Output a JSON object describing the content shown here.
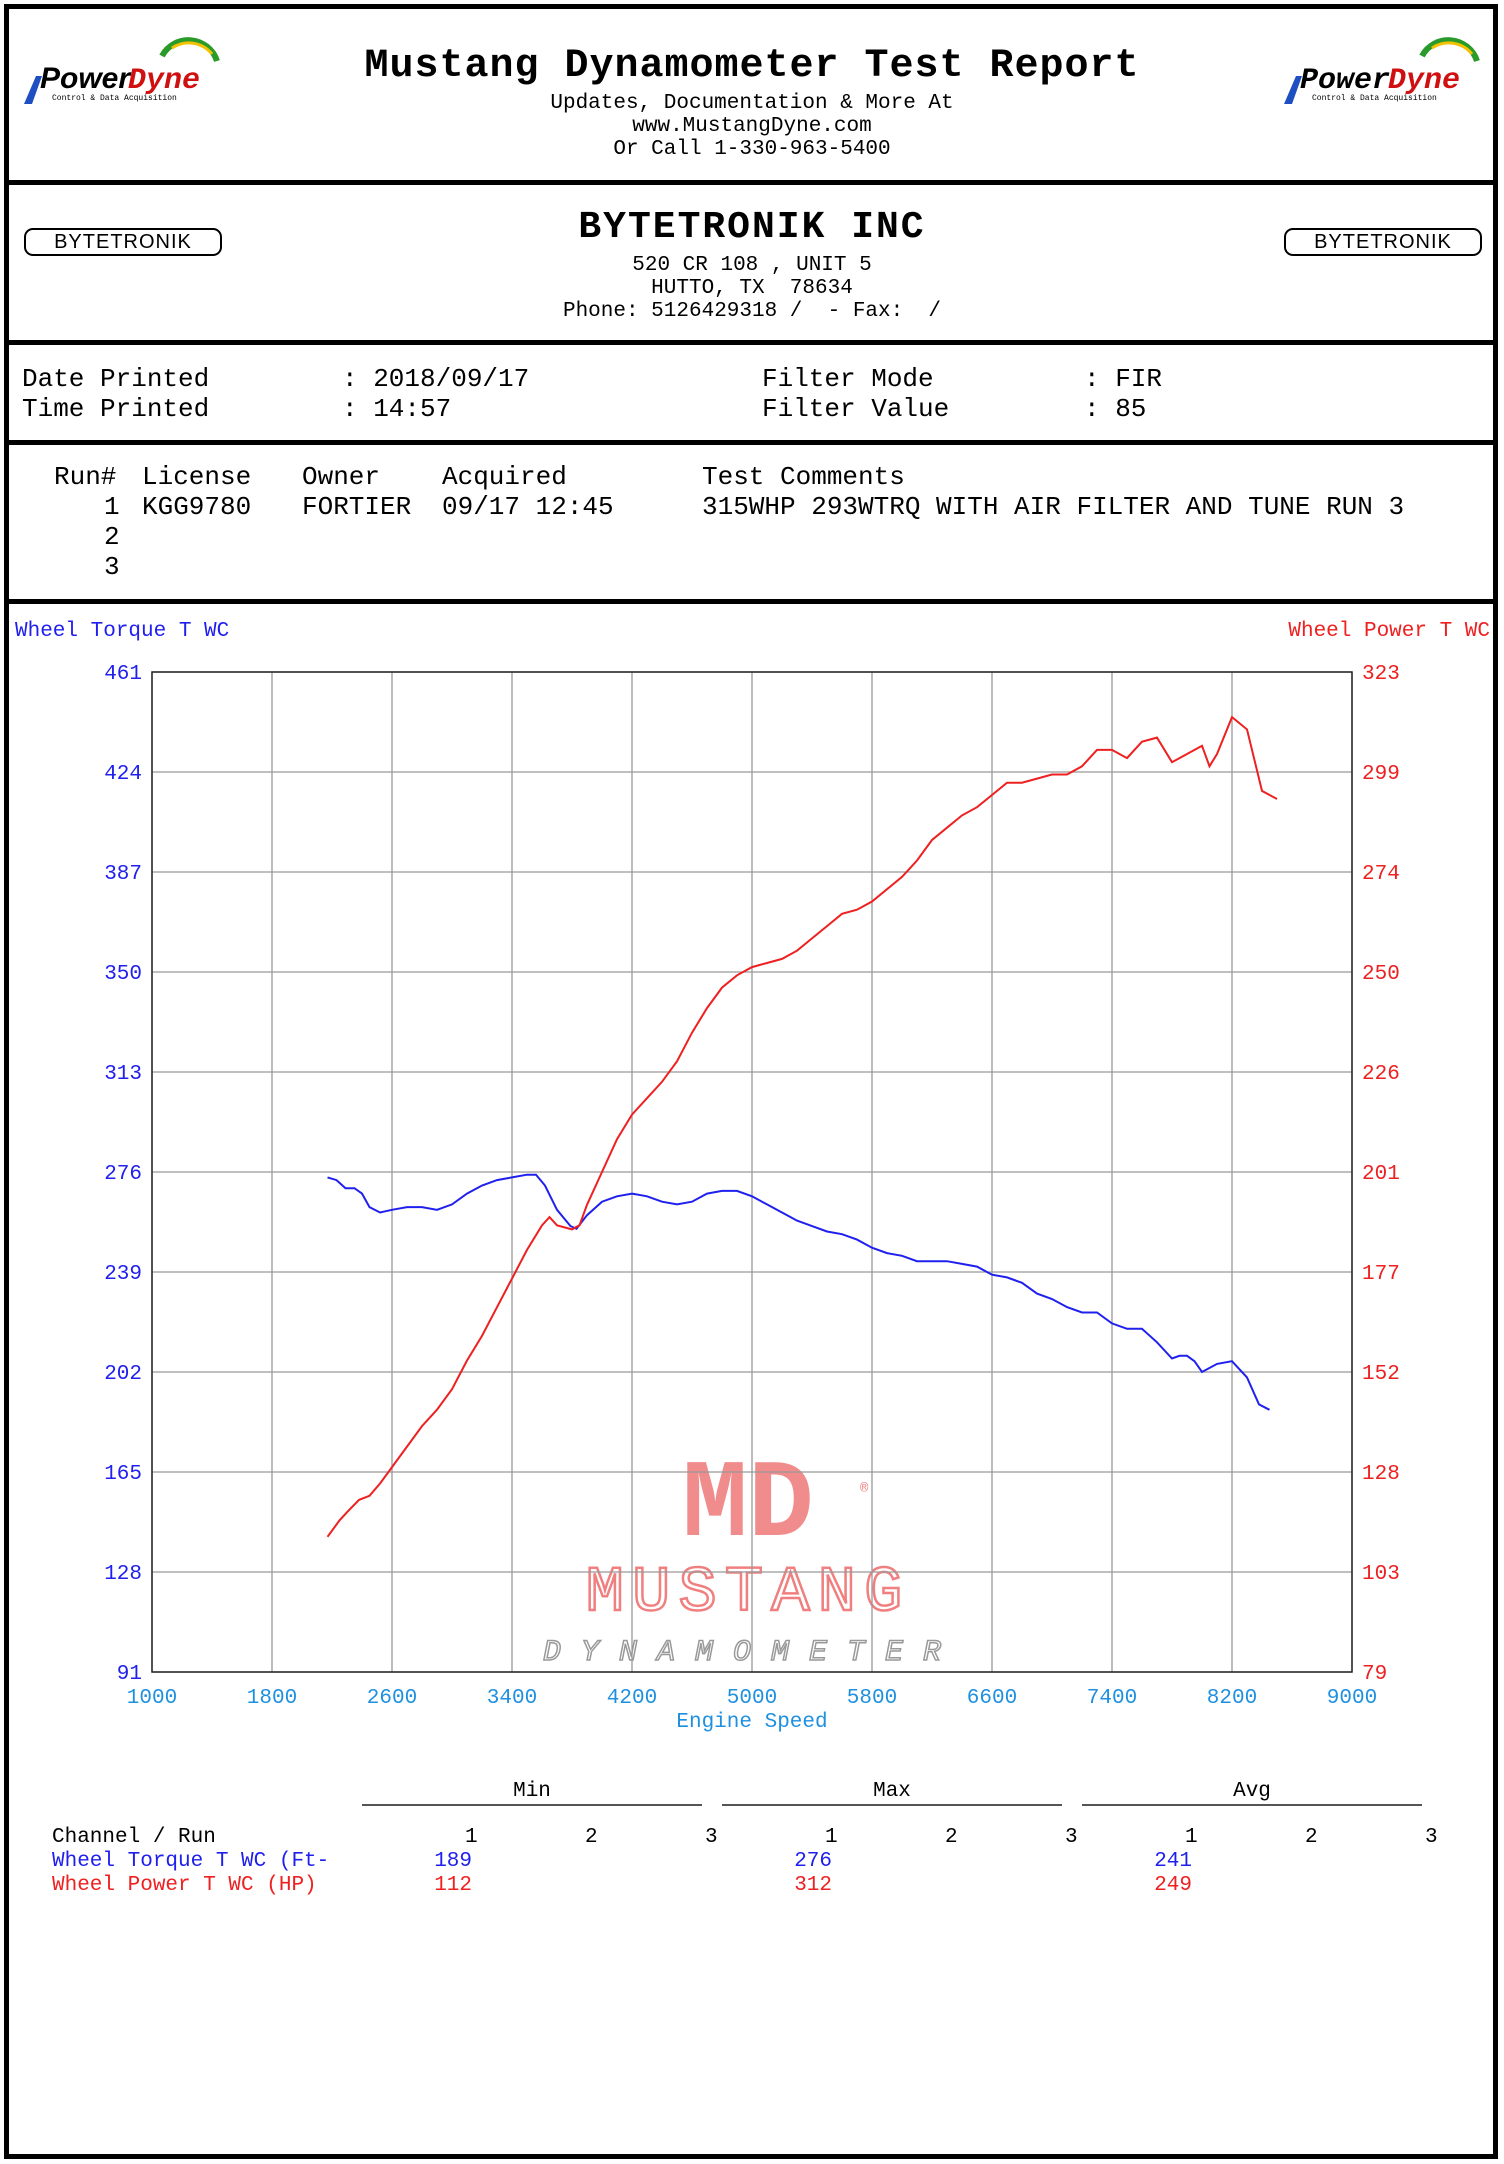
{
  "header": {
    "brand": "PowerDyne",
    "brand_sub": "Control & Data Acquisition",
    "title": "Mustang Dynamometer Test Report",
    "line1": "Updates, Documentation & More At",
    "line2": "www.MustangDyne.com",
    "line3": "Or Call 1-330-963-5400"
  },
  "shop": {
    "logo_text": "BYTETRONIK",
    "name": "BYTETRONIK INC",
    "address1": "520 CR 108 , UNIT 5",
    "address2": "HUTTO, TX  78634",
    "phone": "Phone: 5126429318 /  - Fax:  /"
  },
  "print_info": {
    "date_label": "Date Printed",
    "date_value": ": 2018/09/17",
    "time_label": "Time Printed",
    "time_value": ": 14:57",
    "filter_mode_label": "Filter Mode",
    "filter_mode_value": ": FIR",
    "filter_value_label": "Filter Value",
    "filter_value_value": ": 85"
  },
  "runs": {
    "headers": [
      "Run#",
      "License",
      "Owner",
      "Acquired",
      "Test Comments"
    ],
    "rows": [
      {
        "run": "1",
        "license": "KGG9780",
        "owner": "FORTIER",
        "acquired": "09/17 12:45",
        "comments": "315WHP 293WTRQ WITH AIR FILTER AND TUNE RUN 3"
      },
      {
        "run": "2",
        "license": "",
        "owner": "",
        "acquired": "",
        "comments": ""
      },
      {
        "run": "3",
        "license": "",
        "owner": "",
        "acquired": "",
        "comments": ""
      }
    ]
  },
  "watermark": {
    "mark": "MD",
    "word1": "MUSTANG",
    "word2": "DYNAMOMETER",
    "registered": "®"
  },
  "chart_data": {
    "type": "line",
    "xlabel": "Engine Speed",
    "ylabel_left": "Wheel Torque T WC",
    "ylabel_right": "Wheel Power T WC",
    "xlim": [
      1000,
      9000
    ],
    "ylim_left": [
      91,
      461
    ],
    "ylim_right": [
      79,
      323
    ],
    "x_ticks": [
      "1000",
      "1800",
      "2600",
      "3400",
      "4200",
      "5000",
      "5800",
      "6600",
      "7400",
      "8200",
      "9000"
    ],
    "y_ticks_left": [
      "461",
      "424",
      "387",
      "350",
      "313",
      "276",
      "239",
      "202",
      "165",
      "128",
      "91"
    ],
    "y_ticks_right": [
      "323",
      "299",
      "274",
      "250",
      "226",
      "201",
      "177",
      "152",
      "128",
      "103",
      "79"
    ],
    "grid": true,
    "colors": {
      "torque": "#2020ee",
      "power": "#ee2020",
      "axis_text": "#1e90e0"
    },
    "series": [
      {
        "name": "Wheel Torque T WC",
        "axis": "left",
        "points": [
          [
            2170,
            274
          ],
          [
            2230,
            273
          ],
          [
            2290,
            270
          ],
          [
            2350,
            270
          ],
          [
            2400,
            268
          ],
          [
            2450,
            263
          ],
          [
            2520,
            261
          ],
          [
            2600,
            262
          ],
          [
            2700,
            263
          ],
          [
            2800,
            263
          ],
          [
            2900,
            262
          ],
          [
            3000,
            264
          ],
          [
            3100,
            268
          ],
          [
            3200,
            271
          ],
          [
            3300,
            273
          ],
          [
            3400,
            274
          ],
          [
            3500,
            275
          ],
          [
            3560,
            275
          ],
          [
            3620,
            271
          ],
          [
            3700,
            262
          ],
          [
            3790,
            256
          ],
          [
            3830,
            255
          ],
          [
            3900,
            260
          ],
          [
            4000,
            265
          ],
          [
            4100,
            267
          ],
          [
            4200,
            268
          ],
          [
            4300,
            267
          ],
          [
            4400,
            265
          ],
          [
            4500,
            264
          ],
          [
            4600,
            265
          ],
          [
            4700,
            268
          ],
          [
            4800,
            269
          ],
          [
            4900,
            269
          ],
          [
            5000,
            267
          ],
          [
            5100,
            264
          ],
          [
            5200,
            261
          ],
          [
            5300,
            258
          ],
          [
            5400,
            256
          ],
          [
            5500,
            254
          ],
          [
            5600,
            253
          ],
          [
            5700,
            251
          ],
          [
            5800,
            248
          ],
          [
            5900,
            246
          ],
          [
            6000,
            245
          ],
          [
            6100,
            243
          ],
          [
            6200,
            243
          ],
          [
            6300,
            243
          ],
          [
            6400,
            242
          ],
          [
            6500,
            241
          ],
          [
            6600,
            238
          ],
          [
            6700,
            237
          ],
          [
            6800,
            235
          ],
          [
            6900,
            231
          ],
          [
            7000,
            229
          ],
          [
            7100,
            226
          ],
          [
            7200,
            224
          ],
          [
            7300,
            224
          ],
          [
            7400,
            220
          ],
          [
            7500,
            218
          ],
          [
            7600,
            218
          ],
          [
            7700,
            213
          ],
          [
            7800,
            207
          ],
          [
            7850,
            208
          ],
          [
            7900,
            208
          ],
          [
            7950,
            206
          ],
          [
            8000,
            202
          ],
          [
            8100,
            205
          ],
          [
            8200,
            206
          ],
          [
            8300,
            200
          ],
          [
            8380,
            190
          ],
          [
            8450,
            188
          ]
        ]
      },
      {
        "name": "Wheel Power T WC",
        "axis": "right",
        "points": [
          [
            2170,
            112
          ],
          [
            2250,
            116
          ],
          [
            2300,
            118
          ],
          [
            2380,
            121
          ],
          [
            2450,
            122
          ],
          [
            2520,
            125
          ],
          [
            2600,
            129
          ],
          [
            2700,
            134
          ],
          [
            2800,
            139
          ],
          [
            2900,
            143
          ],
          [
            3000,
            148
          ],
          [
            3100,
            155
          ],
          [
            3200,
            161
          ],
          [
            3300,
            168
          ],
          [
            3400,
            175
          ],
          [
            3500,
            182
          ],
          [
            3600,
            188
          ],
          [
            3650,
            190
          ],
          [
            3700,
            188
          ],
          [
            3800,
            187
          ],
          [
            3850,
            188
          ],
          [
            3900,
            193
          ],
          [
            4000,
            201
          ],
          [
            4100,
            209
          ],
          [
            4200,
            215
          ],
          [
            4300,
            219
          ],
          [
            4400,
            223
          ],
          [
            4500,
            228
          ],
          [
            4600,
            235
          ],
          [
            4700,
            241
          ],
          [
            4800,
            246
          ],
          [
            4900,
            249
          ],
          [
            5000,
            251
          ],
          [
            5100,
            252
          ],
          [
            5200,
            253
          ],
          [
            5300,
            255
          ],
          [
            5400,
            258
          ],
          [
            5500,
            261
          ],
          [
            5600,
            264
          ],
          [
            5700,
            265
          ],
          [
            5800,
            267
          ],
          [
            5900,
            270
          ],
          [
            6000,
            273
          ],
          [
            6100,
            277
          ],
          [
            6200,
            282
          ],
          [
            6300,
            285
          ],
          [
            6400,
            288
          ],
          [
            6500,
            290
          ],
          [
            6600,
            293
          ],
          [
            6700,
            296
          ],
          [
            6800,
            296
          ],
          [
            6900,
            297
          ],
          [
            7000,
            298
          ],
          [
            7100,
            298
          ],
          [
            7200,
            300
          ],
          [
            7300,
            304
          ],
          [
            7400,
            304
          ],
          [
            7500,
            302
          ],
          [
            7600,
            306
          ],
          [
            7700,
            307
          ],
          [
            7800,
            301
          ],
          [
            7900,
            303
          ],
          [
            8000,
            305
          ],
          [
            8050,
            300
          ],
          [
            8100,
            303
          ],
          [
            8200,
            312
          ],
          [
            8300,
            309
          ],
          [
            8400,
            294
          ],
          [
            8500,
            292
          ]
        ]
      }
    ]
  },
  "summary": {
    "group_headers": [
      "Min",
      "Max",
      "Avg"
    ],
    "run_numbers": [
      "1",
      "2",
      "3"
    ],
    "channel_label": "Channel / Run",
    "rows": [
      {
        "label": "Wheel Torque T WC (Ft-",
        "min": "189",
        "max": "276",
        "avg": "241"
      },
      {
        "label": "Wheel Power T WC (HP)",
        "min": "112",
        "max": "312",
        "avg": "249"
      }
    ]
  }
}
